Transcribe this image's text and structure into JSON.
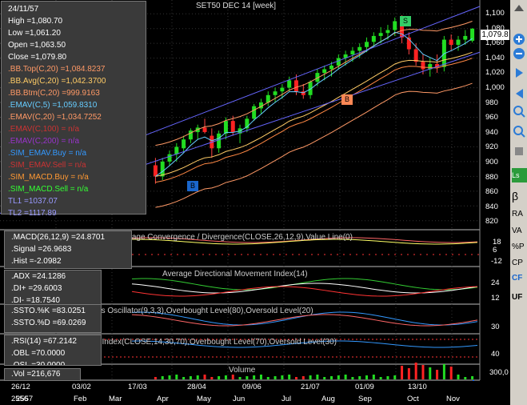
{
  "chart_title": "SET50 DEC 14   [week]",
  "info_main": [
    {
      "text": "24/11/57",
      "color": "#ffffff"
    },
    {
      "text": "High   =1,080.70",
      "color": "#ffffff"
    },
    {
      "text": "Low    =1,061.20",
      "color": "#ffffff"
    },
    {
      "text": "Open   =1,063.50",
      "color": "#ffffff"
    },
    {
      "text": "Close  =1,079.80",
      "color": "#ffffff"
    },
    {
      "text": ".BB.Top(C,20)  =1,084.8237",
      "color": "#ff9966"
    },
    {
      "text": ".BB.Avg(C,20)  =1,042.3700",
      "color": "#ffcc66"
    },
    {
      "text": ".BB.Btm(C,20)  =999.9163",
      "color": "#ff9966"
    },
    {
      "text": ".EMAV(C,5)  =1,059.8310",
      "color": "#66ccff"
    },
    {
      "text": ".EMAV(C,20)  =1,034.7252",
      "color": "#ff9966"
    },
    {
      "text": ".EMAV(C,100)  = n/a",
      "color": "#cc3333"
    },
    {
      "text": ".EMAV(C,200)  = n/a",
      "color": "#9933cc"
    },
    {
      "text": ".SIM_EMAV.Buy  = n/a",
      "color": "#3399ff"
    },
    {
      "text": ".SIM_EMAV.Sell  = n/a",
      "color": "#cc3333"
    },
    {
      "text": ".SIM_MACD.Buy  = n/a",
      "color": "#ff9933"
    },
    {
      "text": ".SIM_MACD.Sell  = n/a",
      "color": "#33ff33"
    },
    {
      "text": "TL1 =1037.07",
      "color": "#9999ff"
    },
    {
      "text": "TL2 =1117.89",
      "color": "#9999ff"
    }
  ],
  "info_macd": [
    {
      "text": ".MACD(26,12,9)  =24.8701",
      "color": "#ffffff"
    },
    {
      "text": ".Signal  =26.9683",
      "color": "#ffffff"
    },
    {
      "text": ".Hist  =-2.0982",
      "color": "#ffffff"
    }
  ],
  "info_adx": [
    {
      "text": ".ADX  =24.1286",
      "color": "#ffffff"
    },
    {
      "text": ".DI+  =29.6003",
      "color": "#ffffff"
    },
    {
      "text": ".DI-  =18.7540",
      "color": "#ffffff"
    }
  ],
  "info_ssto": [
    {
      "text": ".SSTO.%K  =83.0251",
      "color": "#ffffff"
    },
    {
      "text": ".SSTO.%D  =69.0269",
      "color": "#ffffff"
    }
  ],
  "info_rsi": [
    {
      "text": ".RSI(14)  =67.2142",
      "color": "#ffffff"
    },
    {
      "text": ".OBL  =70.0000",
      "color": "#ffffff"
    },
    {
      "text": ".OSL  =30.0000",
      "color": "#ffffff"
    }
  ],
  "info_vol": [
    {
      "text": ".Vol  =216,676",
      "color": "#ffffff"
    }
  ],
  "panel_titles": {
    "macd": "Moving Average Convergence / Divergence(CLOSE,26,12,9),Value Line(0)",
    "adx": "Average Directional Movement Index(14)",
    "ssto": "Slow Stochastics Oscillator(9,3,3),Overbought Level(80),Oversold Level(20)",
    "rsi": "Relative Strength Index(CLOSE,14,30,70),Overbought Level(70),Oversold Level(30)",
    "vol": "Volume"
  },
  "price_axis": [
    "1,100",
    "1,080",
    "1,060",
    "1,040",
    "1,020",
    "1,000",
    "980",
    "960",
    "940",
    "920",
    "900",
    "880",
    "860",
    "840",
    "820"
  ],
  "current_price": "1,079.8",
  "macd_axis": [
    "18",
    "6",
    "-12"
  ],
  "adx_axis": [
    "24",
    "12"
  ],
  "ssto_axis": [
    "30"
  ],
  "rsi_axis": [
    "40"
  ],
  "vol_axis": [
    "300,0"
  ],
  "date_top": [
    "26/12",
    "03/02",
    "17/03",
    "28/04",
    "09/06",
    "21/07",
    "01/09",
    "13/10"
  ],
  "date_bottom": [
    "2556",
    "Feb",
    "Mar",
    "Apr",
    "May",
    "Jun",
    "Jul",
    "Aug",
    "Sep",
    "Oct",
    "Nov"
  ],
  "date_bottom_overlap": "2557",
  "markers": {
    "s": "S",
    "b_low": "B",
    "b_mid": "B"
  },
  "sidebar": {
    "ls": "Ls",
    "beta": "β",
    "labels": [
      "RA",
      "VA",
      "%P",
      "CP",
      "CF",
      "UF"
    ]
  },
  "chart_data": {
    "type": "candlestick",
    "title": "SET50 DEC 14 [week]",
    "ylim": [
      810,
      1110
    ],
    "candles": [
      [
        895,
        905,
        870,
        880
      ],
      [
        880,
        905,
        875,
        900
      ],
      [
        900,
        915,
        895,
        910
      ],
      [
        910,
        925,
        900,
        920
      ],
      [
        918,
        935,
        912,
        930
      ],
      [
        930,
        945,
        925,
        942
      ],
      [
        940,
        950,
        930,
        946
      ],
      [
        946,
        958,
        938,
        940
      ],
      [
        935,
        945,
        905,
        918
      ],
      [
        918,
        942,
        912,
        938
      ],
      [
        938,
        960,
        930,
        955
      ],
      [
        955,
        962,
        935,
        940
      ],
      [
        938,
        950,
        925,
        945
      ],
      [
        945,
        962,
        940,
        958
      ],
      [
        958,
        978,
        955,
        975
      ],
      [
        972,
        985,
        965,
        980
      ],
      [
        980,
        995,
        975,
        990
      ],
      [
        990,
        1000,
        980,
        995
      ],
      [
        995,
        1005,
        985,
        1000
      ],
      [
        1000,
        1015,
        995,
        1010
      ],
      [
        1010,
        1018,
        990,
        995
      ],
      [
        995,
        1005,
        985,
        990
      ],
      [
        990,
        1010,
        985,
        1008
      ],
      [
        1008,
        1025,
        1002,
        1020
      ],
      [
        1020,
        1030,
        1010,
        1025
      ],
      [
        1025,
        1035,
        1015,
        1030
      ],
      [
        1030,
        1045,
        1025,
        1040
      ],
      [
        1040,
        1050,
        1030,
        1045
      ],
      [
        1045,
        1055,
        1035,
        1050
      ],
      [
        1050,
        1060,
        1040,
        1055
      ],
      [
        1055,
        1068,
        1048,
        1062
      ],
      [
        1062,
        1075,
        1055,
        1070
      ],
      [
        1070,
        1082,
        1060,
        1074
      ],
      [
        1074,
        1085,
        1065,
        1078
      ],
      [
        1078,
        1095,
        1070,
        1090
      ],
      [
        1090,
        1098,
        1060,
        1068
      ],
      [
        1068,
        1075,
        1045,
        1052
      ],
      [
        1052,
        1060,
        1030,
        1035
      ],
      [
        1035,
        1045,
        1018,
        1025
      ],
      [
        1025,
        1040,
        1015,
        1032
      ],
      [
        1032,
        1045,
        1020,
        1028
      ],
      [
        1028,
        1070,
        1022,
        1065
      ],
      [
        1065,
        1072,
        1050,
        1058
      ],
      [
        1058,
        1070,
        1050,
        1065
      ],
      [
        1065,
        1078,
        1058,
        1070
      ],
      [
        1063.5,
        1080.7,
        1061.2,
        1079.8
      ]
    ]
  }
}
